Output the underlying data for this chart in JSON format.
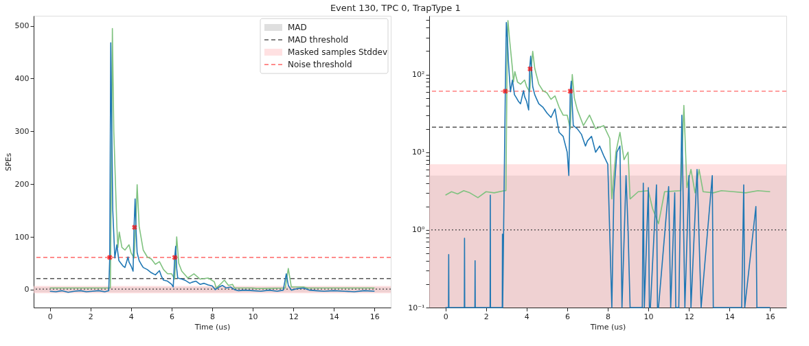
{
  "chart_data": [
    {
      "type": "line",
      "title": "Event 130, TPC 0, TrapType 1",
      "xlabel": "Time (us)",
      "ylabel": "SPEs",
      "xlim": [
        -0.8,
        16.8
      ],
      "xticks": [
        0,
        2,
        4,
        6,
        8,
        10,
        12,
        14,
        16
      ],
      "ylim": [
        -34,
        519
      ],
      "yticks": [
        0,
        100,
        200,
        300,
        400,
        500
      ],
      "grid": false,
      "legend": "top right",
      "bands": [
        {
          "axis": "y",
          "from": -5,
          "to": 5,
          "label": "MAD",
          "color": "#bfbfbf"
        },
        {
          "axis": "y",
          "from": -7,
          "to": 7,
          "label": "Masked samples Stddev",
          "color": "#ffc4c6"
        }
      ],
      "ref_lines": [
        {
          "axis": "y",
          "value": 21,
          "label": "MAD threshold",
          "color": "#555555",
          "line_style": "dashed"
        },
        {
          "axis": "y",
          "value": 61,
          "label": "Noise threshold",
          "color": "#ff6666",
          "line_style": "dashed"
        },
        {
          "axis": "y",
          "value": 1,
          "color": "#404040",
          "line_style": "dotted"
        }
      ],
      "series": [
        {
          "type": "line",
          "color": "#7fc27f",
          "x": [
            0,
            2.9,
            2.98,
            3.05,
            3.08,
            3.15,
            3.3,
            3.35,
            3.42,
            3.55,
            3.7,
            3.9,
            4.0,
            4.15,
            4.25,
            4.3,
            4.4,
            4.6,
            4.8,
            5.0,
            5.2,
            5.4,
            5.6,
            5.8,
            6.0,
            6.15,
            6.25,
            6.35,
            6.5,
            6.8,
            7.1,
            7.4,
            7.8,
            8.1,
            8.2,
            8.4,
            8.6,
            8.8,
            9.0,
            9.1,
            10,
            10.2,
            11.6,
            11.75,
            11.9,
            12.2,
            12.5,
            12.7,
            14,
            16
          ],
          "values": [
            3,
            3,
            3,
            300,
            495,
            300,
            120,
            80,
            109,
            80,
            75,
            85,
            70,
            60,
            140,
            199,
            120,
            75,
            62,
            58,
            48,
            53,
            38,
            30,
            30,
            20,
            100,
            50,
            35,
            22,
            30,
            20,
            22,
            15,
            3,
            10,
            18,
            8,
            10,
            3,
            3,
            2,
            3,
            40,
            5,
            5,
            5,
            3,
            3,
            3
          ]
        },
        {
          "type": "line",
          "color": "#1f77b4",
          "x": [
            0,
            0.3,
            0.6,
            0.9,
            1.2,
            1.5,
            1.8,
            2.1,
            2.4,
            2.7,
            2.9,
            2.95,
            3.0,
            3.05,
            3.1,
            3.2,
            3.3,
            3.4,
            3.5,
            3.6,
            3.7,
            3.8,
            3.85,
            3.9,
            4.0,
            4.1,
            4.15,
            4.2,
            4.25,
            4.3,
            4.4,
            4.5,
            4.6,
            4.8,
            5.0,
            5.2,
            5.4,
            5.5,
            5.6,
            5.8,
            6.0,
            6.08,
            6.15,
            6.2,
            6.25,
            6.3,
            6.5,
            6.7,
            6.9,
            7.0,
            7.2,
            7.4,
            7.6,
            7.8,
            8.0,
            8.15,
            8.3,
            8.5,
            8.7,
            8.9,
            9.1,
            9.3,
            9.6,
            10,
            10.4,
            10.8,
            11.2,
            11.5,
            11.65,
            11.75,
            11.9,
            12.2,
            12.5,
            12.8,
            13.1,
            13.5,
            14,
            14.5,
            15,
            15.5,
            16
          ],
          "values": [
            -3,
            -4,
            -2,
            -5,
            -3,
            -2,
            -4,
            -3,
            -2,
            -4,
            -2,
            60,
            468,
            300,
            150,
            60,
            85,
            55,
            50,
            45,
            42,
            55,
            62,
            52,
            45,
            35,
            120,
            172,
            110,
            70,
            55,
            48,
            42,
            38,
            32,
            28,
            36,
            25,
            18,
            16,
            10,
            5,
            60,
            82,
            40,
            22,
            20,
            17,
            12,
            14,
            16,
            10,
            12,
            9,
            7,
            0,
            4,
            8,
            3,
            5,
            0,
            -2,
            -1,
            -2,
            -3,
            -1,
            -3,
            -1,
            30,
            8,
            -1,
            2,
            3,
            -1,
            -2,
            -3,
            -2,
            -3,
            -4,
            -2,
            -3
          ]
        },
        {
          "type": "scatter",
          "color": "#ff0000",
          "marker": "cross",
          "x": [
            2.95,
            4.17,
            6.15
          ],
          "values": [
            61,
            118,
            61
          ]
        }
      ]
    },
    {
      "type": "line",
      "xlabel": "Time (us)",
      "log": "y",
      "xlim": [
        -0.8,
        16.8
      ],
      "xticks": [
        0,
        2,
        4,
        6,
        8,
        10,
        12,
        14,
        16
      ],
      "ylim": [
        0.1,
        570
      ],
      "yticks": [
        {
          "value": 0.1,
          "label": "10⁻¹"
        },
        {
          "value": 0.2,
          "label": null
        },
        {
          "value": 0.3,
          "label": null
        },
        {
          "value": 0.4,
          "label": null
        },
        {
          "value": 0.5,
          "label": null
        },
        {
          "value": 0.6,
          "label": null
        },
        {
          "value": 0.7,
          "label": null
        },
        {
          "value": 0.8,
          "label": null
        },
        {
          "value": 0.9,
          "label": null
        },
        {
          "value": 1,
          "label": "10⁰"
        },
        {
          "value": 2,
          "label": null
        },
        {
          "value": 3,
          "label": null
        },
        {
          "value": 4,
          "label": null
        },
        {
          "value": 5,
          "label": null
        },
        {
          "value": 6,
          "label": null
        },
        {
          "value": 7,
          "label": null
        },
        {
          "value": 8,
          "label": null
        },
        {
          "value": 9,
          "label": null
        },
        {
          "value": 10,
          "label": "10¹"
        },
        {
          "value": 20,
          "label": null
        },
        {
          "value": 30,
          "label": null
        },
        {
          "value": 40,
          "label": null
        },
        {
          "value": 50,
          "label": null
        },
        {
          "value": 60,
          "label": null
        },
        {
          "value": 70,
          "label": null
        },
        {
          "value": 80,
          "label": null
        },
        {
          "value": 90,
          "label": null
        },
        {
          "value": 100,
          "label": "10²"
        },
        {
          "value": 200,
          "label": null
        },
        {
          "value": 300,
          "label": null
        },
        {
          "value": 400,
          "label": null
        },
        {
          "value": 500,
          "label": null
        }
      ],
      "grid": false,
      "bands": [
        {
          "axis": "y",
          "from": 0.1,
          "to": 5,
          "color": "#bfbfbf"
        },
        {
          "axis": "y",
          "from": 0.1,
          "to": 7,
          "color": "#ffc4c6"
        }
      ],
      "ref_lines": [
        {
          "axis": "y",
          "value": 21,
          "color": "#555555",
          "line_style": "dashed"
        },
        {
          "axis": "y",
          "value": 61,
          "color": "#ff6666",
          "line_style": "dashed"
        },
        {
          "axis": "y",
          "value": 1,
          "color": "#404040",
          "line_style": "dotted"
        }
      ],
      "series": [
        {
          "type": "line",
          "color": "#7fc27f",
          "x": [
            0,
            0.3,
            0.6,
            0.9,
            1.2,
            1.6,
            2.0,
            2.4,
            2.9,
            2.98,
            3.05,
            3.08,
            3.15,
            3.3,
            3.35,
            3.42,
            3.55,
            3.7,
            3.9,
            4.0,
            4.15,
            4.25,
            4.3,
            4.4,
            4.6,
            4.8,
            5.0,
            5.2,
            5.4,
            5.6,
            5.8,
            6.0,
            6.15,
            6.25,
            6.35,
            6.5,
            6.8,
            7.1,
            7.4,
            7.8,
            8.1,
            8.2,
            8.4,
            8.6,
            8.8,
            9.0,
            9.1,
            9.5,
            10,
            10.2,
            10.5,
            10.8,
            11.6,
            11.75,
            11.9,
            12.1,
            12.3,
            12.5,
            12.7,
            13.2,
            13.6,
            14.2,
            14.8,
            15.4,
            16
          ],
          "values": [
            2.8,
            3.1,
            2.9,
            3.2,
            3.0,
            2.6,
            3.1,
            3.0,
            3.2,
            3.2,
            300,
            495,
            300,
            120,
            80,
            109,
            80,
            75,
            85,
            70,
            60,
            140,
            199,
            120,
            75,
            62,
            58,
            48,
            53,
            38,
            30,
            30,
            20,
            100,
            50,
            35,
            22,
            30,
            20,
            22,
            15,
            2.5,
            10,
            18,
            8,
            10,
            2.5,
            3.1,
            3.2,
            1.9,
            1.2,
            3.1,
            3.2,
            40,
            3.5,
            6,
            3,
            6,
            3.1,
            3.0,
            3.2,
            3.1,
            3.0,
            3.2,
            3.1
          ]
        },
        {
          "type": "line",
          "color": "#1f77b4",
          "x": [
            0,
            0.15,
            0.16,
            0.17,
            0.93,
            0.94,
            0.95,
            1.45,
            1.46,
            1.47,
            2.2,
            2.21,
            2.22,
            2.8,
            2.81,
            2.82,
            2.95,
            3.0,
            3.05,
            3.1,
            3.2,
            3.3,
            3.4,
            3.5,
            3.6,
            3.7,
            3.8,
            3.85,
            3.9,
            4.0,
            4.1,
            4.15,
            4.2,
            4.25,
            4.3,
            4.4,
            4.5,
            4.6,
            4.8,
            5.0,
            5.2,
            5.4,
            5.5,
            5.6,
            5.8,
            6.0,
            6.08,
            6.15,
            6.2,
            6.25,
            6.3,
            6.5,
            6.7,
            6.9,
            7.0,
            7.2,
            7.4,
            7.6,
            7.8,
            8.0,
            8.2,
            8.3,
            8.45,
            8.6,
            8.7,
            8.9,
            9.0,
            9.1,
            9.7,
            9.75,
            9.8,
            10.0,
            10.05,
            10.1,
            10.4,
            10.45,
            10.5,
            11.0,
            11.1,
            11.3,
            11.35,
            11.5,
            11.65,
            11.8,
            12.0,
            12.1,
            12.4,
            12.6,
            13.15,
            13.2,
            14.6,
            14.7,
            14.75,
            15.3,
            15.35,
            16
          ],
          "values": [
            0.1,
            0.1,
            0.48,
            0.1,
            0.1,
            0.78,
            0.1,
            0.1,
            0.4,
            0.1,
            0.1,
            2.8,
            0.1,
            0.1,
            0.88,
            0.1,
            60,
            468,
            300,
            150,
            60,
            85,
            55,
            50,
            45,
            42,
            55,
            62,
            52,
            45,
            35,
            120,
            172,
            110,
            70,
            55,
            48,
            42,
            38,
            32,
            28,
            36,
            25,
            18,
            16,
            10,
            5,
            60,
            82,
            40,
            22,
            20,
            17,
            12,
            14,
            16,
            10,
            12,
            9,
            7,
            0.1,
            3,
            10,
            12,
            0.1,
            5,
            1,
            0.1,
            0.1,
            4,
            0.1,
            3.5,
            0.1,
            0.1,
            3.8,
            0.1,
            0.1,
            3.6,
            0.1,
            3,
            0.1,
            0.1,
            30,
            0.1,
            5,
            0.1,
            6,
            0.1,
            5,
            0.1,
            0.1,
            3.8,
            0.1,
            2,
            0.1,
            0.1
          ]
        },
        {
          "type": "scatter",
          "color": "#ff0000",
          "marker": "cross",
          "x": [
            2.95,
            4.17,
            6.15
          ],
          "values": [
            61,
            118,
            61
          ]
        }
      ]
    }
  ]
}
